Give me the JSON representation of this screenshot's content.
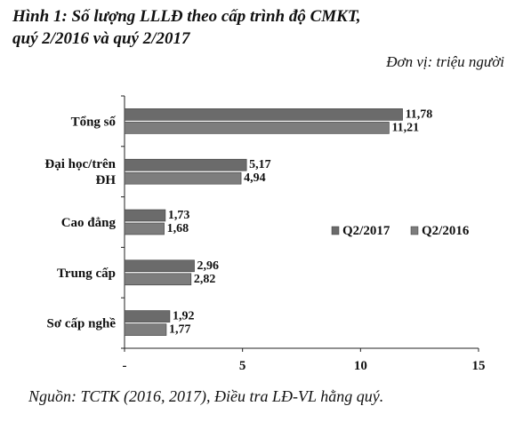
{
  "figure": {
    "title_line1": "Hình 1: Số lượng LLLĐ theo cấp trình độ CMKT,",
    "title_line2": "quý 2/2016 và quý 2/2017",
    "unit": "Đơn vị: triệu người",
    "source": "Nguồn: TCTK (2016, 2017), Điều tra LĐ-VL hằng quý."
  },
  "chart_data": {
    "type": "bar",
    "orientation": "horizontal",
    "categories": [
      "Tổng số",
      "Đại học/trên ĐH",
      "Cao đẳng",
      "Trung cấp",
      "Sơ cấp nghề"
    ],
    "category_label_lines": [
      [
        "Tổng số"
      ],
      [
        "Đại học/trên",
        "ĐH"
      ],
      [
        "Cao đẳng"
      ],
      [
        "Trung cấp"
      ],
      [
        "Sơ cấp nghề"
      ]
    ],
    "series": [
      {
        "name": "Q2/2017",
        "values": [
          11.78,
          5.17,
          1.73,
          2.96,
          1.92
        ],
        "labels": [
          "11,78",
          "5,17",
          "1,73",
          "2,96",
          "1,92"
        ],
        "color": "#6b6b6b"
      },
      {
        "name": "Q2/2016",
        "values": [
          11.21,
          4.94,
          1.68,
          2.82,
          1.77
        ],
        "labels": [
          "11,21",
          "4,94",
          "1,68",
          "2,82",
          "1,77"
        ],
        "color": "#7d7d7d"
      }
    ],
    "xlim": [
      0,
      15
    ],
    "x_ticks": [
      0,
      5,
      10,
      15
    ],
    "x_tick_labels": [
      "-",
      "5",
      "10",
      "15"
    ],
    "legend_position": "right",
    "grid": false
  }
}
